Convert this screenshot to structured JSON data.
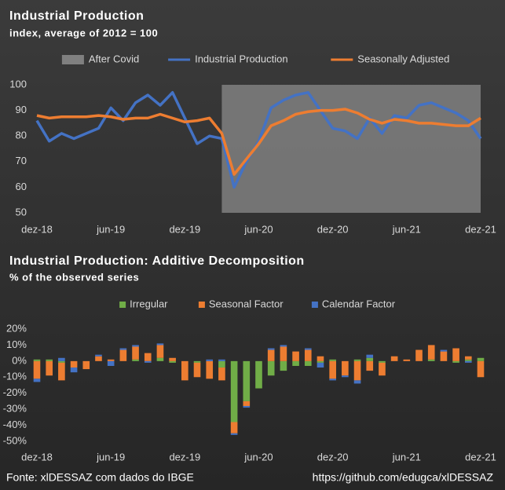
{
  "chart_data": [
    {
      "type": "line",
      "title": "Industrial Production",
      "subtitle": "index, average of 2012 = 100",
      "categories": [
        "dez-18",
        null,
        null,
        null,
        null,
        null,
        "jun-19",
        null,
        null,
        null,
        null,
        null,
        "dez-19",
        null,
        null,
        null,
        null,
        null,
        "jun-20",
        null,
        null,
        null,
        null,
        null,
        "dez-20",
        null,
        null,
        null,
        null,
        null,
        "jun-21",
        null,
        null,
        null,
        null,
        null,
        "dez-21"
      ],
      "series": [
        {
          "name": "After Covid",
          "style": "area",
          "color": "#808080",
          "values": [
            null,
            null,
            null,
            null,
            null,
            null,
            null,
            null,
            null,
            null,
            null,
            null,
            null,
            null,
            null,
            100,
            100,
            100,
            100,
            100,
            100,
            100,
            100,
            100,
            100,
            100,
            100,
            100,
            100,
            100,
            100,
            100,
            100,
            100,
            100,
            100,
            100
          ]
        },
        {
          "name": "Industrial Production",
          "color": "#4472c4",
          "values": [
            86,
            78,
            81,
            79,
            81,
            83,
            91,
            86,
            93,
            96,
            92,
            97,
            87,
            77,
            80,
            79,
            60,
            70,
            78,
            91,
            94,
            96,
            97,
            90,
            83,
            82,
            79,
            87,
            81,
            88,
            87,
            92,
            93,
            91,
            89,
            86,
            79
          ]
        },
        {
          "name": "Seasonally Adjusted",
          "color": "#ed7d31",
          "values": [
            88,
            87,
            87.5,
            87.5,
            87.5,
            88,
            87.5,
            86.5,
            87,
            87,
            88.5,
            87,
            85.5,
            86,
            87,
            81,
            65,
            71,
            77,
            84,
            86,
            88.5,
            89.5,
            90,
            90,
            90.5,
            89,
            86.5,
            85,
            86.5,
            86,
            85,
            85,
            84.5,
            84,
            84,
            87
          ]
        }
      ],
      "ylim": [
        50,
        100
      ],
      "yticks": [
        50,
        60,
        70,
        80,
        90,
        100
      ],
      "grid": false,
      "legend": "top"
    },
    {
      "type": "stacked_bar",
      "title": "Industrial Production: Additive Decomposition",
      "subtitle": "% of the observed series",
      "categories": [
        "dez-18",
        null,
        null,
        null,
        null,
        null,
        "jun-19",
        null,
        null,
        null,
        null,
        null,
        "dez-19",
        null,
        null,
        null,
        null,
        null,
        "jun-20",
        null,
        null,
        null,
        null,
        null,
        "dez-20",
        null,
        null,
        null,
        null,
        null,
        "jun-21",
        null,
        null,
        null,
        null,
        null,
        "dez-21"
      ],
      "series": [
        {
          "name": "Irregular",
          "color": "#70ad47",
          "values": [
            1,
            1,
            -1,
            0,
            0,
            0,
            0,
            0,
            1,
            0,
            2,
            -1,
            0,
            -1,
            0,
            -4,
            -38,
            -25,
            -17,
            -9,
            -6,
            -3,
            -3,
            -1,
            1,
            0,
            1,
            2,
            -1,
            0,
            0,
            0,
            1,
            0,
            -1,
            1,
            2
          ]
        },
        {
          "name": "Seasonal Factor",
          "color": "#ed7d31",
          "values": [
            -11,
            -9,
            -11,
            -4,
            -5,
            3,
            1,
            7,
            8,
            5,
            8,
            2,
            -12,
            -9,
            -11,
            -8,
            -7,
            -3,
            0,
            7,
            9,
            6,
            7,
            3,
            -11,
            -9,
            -12,
            -6,
            -8,
            3,
            1,
            7,
            9,
            6,
            8,
            2,
            -10
          ]
        },
        {
          "name": "Calendar Factor",
          "color": "#4472c4",
          "values": [
            -2,
            0,
            2,
            -3,
            0,
            1,
            -3,
            1,
            1,
            -1,
            1,
            0,
            0,
            0,
            1,
            1,
            -1,
            -1,
            0,
            1,
            1,
            0,
            1,
            -3,
            -1,
            -1,
            -2,
            2,
            0,
            0,
            0,
            0,
            0,
            1,
            0,
            -1,
            0
          ]
        }
      ],
      "ylim": [
        -50,
        20
      ],
      "yticks": [
        {
          "value": -50,
          "label": "-50%"
        },
        {
          "value": -40,
          "label": "-40%"
        },
        {
          "value": -30,
          "label": "-30%"
        },
        {
          "value": -20,
          "label": "-20%"
        },
        {
          "value": -10,
          "label": "-10%"
        },
        {
          "value": 0,
          "label": "0%"
        },
        {
          "value": 10,
          "label": "10%"
        },
        {
          "value": 20,
          "label": "20%"
        }
      ],
      "grid": false,
      "legend": "top"
    }
  ],
  "footer": {
    "source": "Fonte: xlDESSAZ com dados do IBGE",
    "url": "https://github.com/edugca/xlDESSAZ"
  }
}
